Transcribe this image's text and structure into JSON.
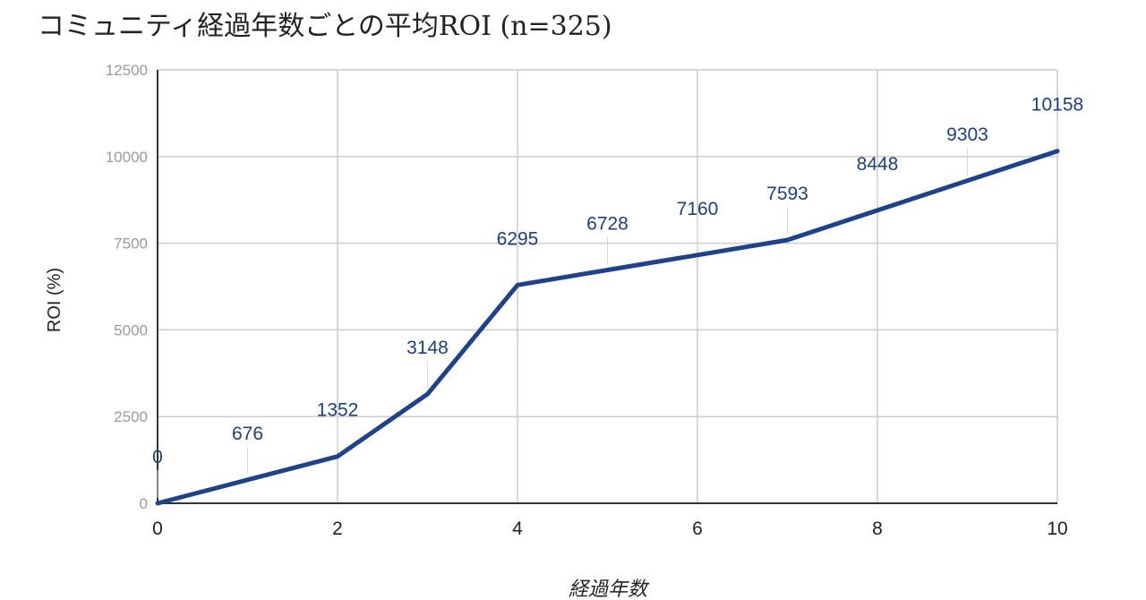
{
  "chart_data": {
    "type": "line",
    "title": "コミュニティ経過年数ごとの平均ROI (n=325)",
    "xlabel": "経過年数",
    "ylabel": "ROI (%)",
    "x": [
      0,
      1,
      2,
      3,
      4,
      5,
      6,
      7,
      8,
      9,
      10
    ],
    "x_ticks": [
      0,
      2,
      4,
      6,
      8,
      10
    ],
    "y_ticks": [
      0,
      2500,
      5000,
      7500,
      10000,
      12500
    ],
    "xlim": [
      0,
      10
    ],
    "ylim": [
      0,
      12500
    ],
    "grid": true,
    "legend": "none",
    "series": [
      {
        "values": [
          0,
          676,
          1352,
          3148,
          6295,
          6728,
          7160,
          7593,
          8448,
          9303,
          10158
        ],
        "data_labels": [
          "0",
          "676",
          "1352",
          "3148",
          "6295",
          "6728",
          "7160",
          "7593",
          "8448",
          "9303",
          "10158"
        ],
        "color": "#1f4388"
      }
    ]
  }
}
